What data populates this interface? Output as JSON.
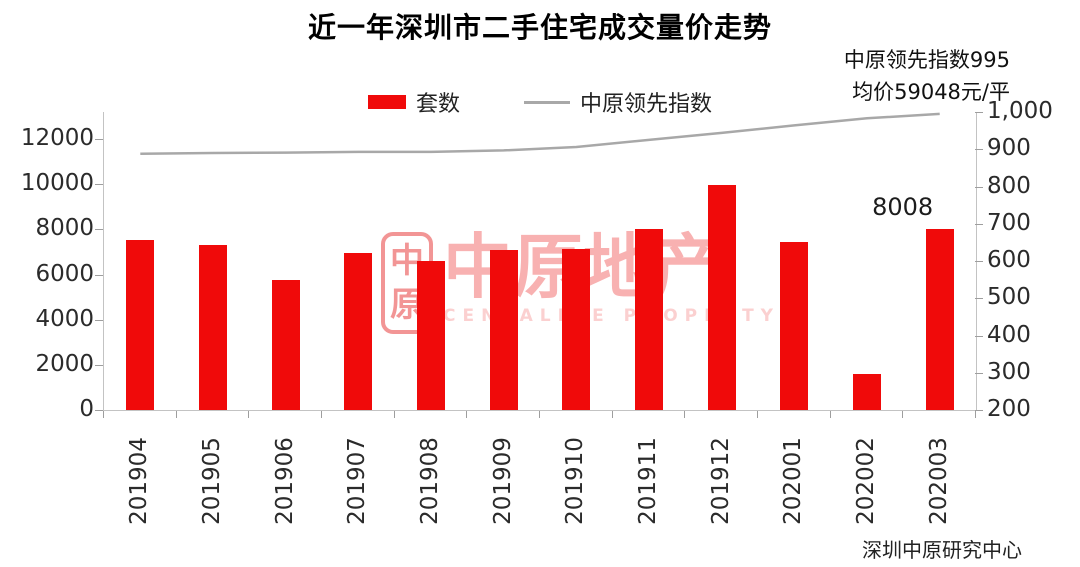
{
  "title": "近一年深圳市二手住宅成交量价走势",
  "legend": [
    {
      "label": "套数",
      "type": "bar",
      "color": "#f00a0a"
    },
    {
      "label": "中原领先指数",
      "type": "line",
      "color": "#a8a8a8"
    }
  ],
  "annotation": {
    "line1": "中原领先指数995",
    "line2": "均价59048元/平"
  },
  "source": "深圳中原研究中心",
  "watermark": {
    "seal_top": "中",
    "seal_bottom": "原",
    "name": "中原地产",
    "subtitle": "CENTALINE PROPERTY"
  },
  "colors": {
    "bar": "#f00a0a",
    "line": "#a8a8a8",
    "axis": "#c3c3c3",
    "tick": "#9e9e9e"
  },
  "chart_data": {
    "type": "bar",
    "subtype": "bar+line combo, dual axis",
    "title": "近一年深圳市二手住宅成交量价走势",
    "categories": [
      "201904",
      "201905",
      "201906",
      "201907",
      "201908",
      "201909",
      "201910",
      "201911",
      "201912",
      "202001",
      "202002",
      "202003"
    ],
    "series": [
      {
        "name": "套数",
        "type": "bar",
        "axis": "left",
        "color": "#f00a0a",
        "values": [
          7550,
          7330,
          5780,
          6950,
          6600,
          7080,
          7130,
          8000,
          9950,
          7450,
          1600,
          8008
        ]
      },
      {
        "name": "中原领先指数",
        "type": "line",
        "axis": "right",
        "color": "#a8a8a8",
        "values": [
          888,
          890,
          891,
          893,
          893,
          897,
          906,
          925,
          944,
          964,
          983,
          995
        ]
      }
    ],
    "left_axis": {
      "min": 0,
      "max_visible_tick": 12000,
      "scale_max": 13200,
      "tick_step": 2000,
      "tick_labels": [
        "0",
        "2000",
        "4000",
        "6000",
        "8000",
        "10000",
        "12000"
      ]
    },
    "right_axis": {
      "min": 200,
      "max": 1000,
      "tick_step": 100,
      "tick_labels": [
        "200",
        "300",
        "400",
        "500",
        "600",
        "700",
        "800",
        "900",
        "1,000"
      ]
    },
    "bar_label": {
      "category": "202003",
      "value": "8008"
    },
    "grid": false,
    "legend_position": "top-center"
  }
}
